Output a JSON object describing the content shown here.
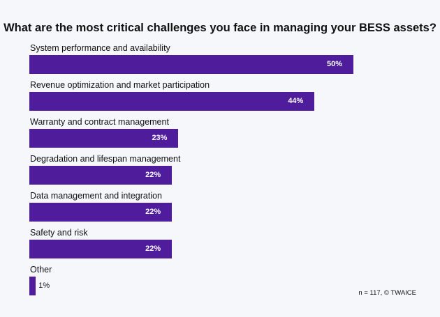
{
  "chart_data": {
    "type": "bar",
    "orientation": "horizontal",
    "title": "What are the most critical challenges you face in managing your BESS assets?",
    "categories": [
      "System performance and availability",
      "Revenue optimization and market participation",
      "Warranty and contract management",
      "Degradation and lifespan management",
      "Data management and integration",
      "Safety and risk",
      "Other"
    ],
    "values": [
      50,
      44,
      23,
      22,
      22,
      22,
      1
    ],
    "labels": [
      "50%",
      "44%",
      "23%",
      "22%",
      "22%",
      "22%",
      "1%"
    ],
    "xlim": [
      0,
      50
    ],
    "grid": false,
    "bar_color": "#4f1d9b",
    "note": "n = 117, © TWAICE"
  }
}
